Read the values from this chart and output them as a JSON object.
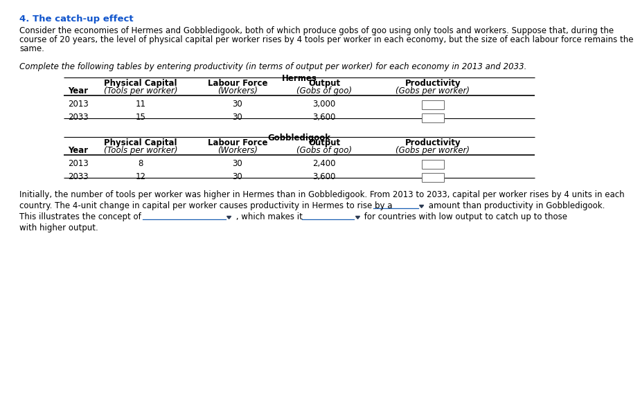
{
  "title": "4. The catch-up effect",
  "title_color": "#1155CC",
  "body_lines": [
    "Consider the economies of Hermes and Gobbledigook, both of which produce gobs of goo using only tools and workers. Suppose that, during the",
    "course of 20 years, the level of physical capital per worker rises by 4 tools per worker in each economy, but the size of each labour force remains the",
    "same."
  ],
  "italic_instruction": "Complete the following tables by entering productivity (in terms of output per worker) for each economy in 2013 and 2033.",
  "hermes_title": "Hermes",
  "gobbledigook_title": "Gobbledigook",
  "hermes_rows": [
    [
      "2013",
      "11",
      "30",
      "3,000"
    ],
    [
      "2033",
      "15",
      "30",
      "3,600"
    ]
  ],
  "gobbledigook_rows": [
    [
      "2013",
      "8",
      "30",
      "2,400"
    ],
    [
      "2033",
      "12",
      "30",
      "3,600"
    ]
  ],
  "footer_line1": "Initially, the number of tools per worker was higher in Hermes than in Gobbledigook. From 2013 to 2033, capital per worker rises by 4 units in each",
  "footer_line2_start": "country. The 4-unit change in capital per worker causes productivity in Hermes to rise by a ",
  "footer_line2_end": " amount than productivity in Gobbledigook.",
  "footer_line3_start": "This illustrates the concept of ",
  "footer_line3_mid": " , which makes it ",
  "footer_line3_end": " for countries with low output to catch up to those",
  "footer_line4": "with higher output.",
  "bg_color": "#ffffff",
  "text_color": "#000000",
  "dropdown_color": "#1a5fb4",
  "arrow_color": "#2b3a52"
}
